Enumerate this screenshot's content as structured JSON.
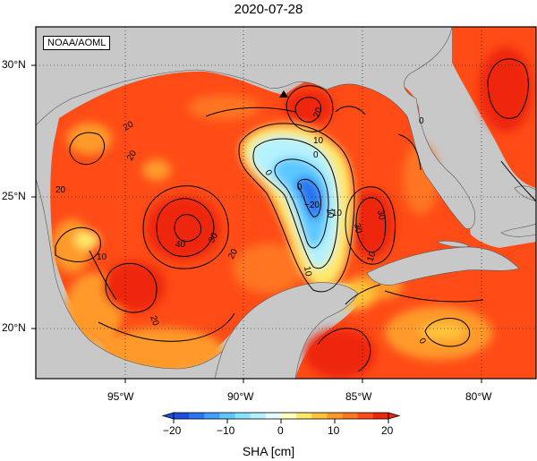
{
  "title": "2020-07-28",
  "credit": "NOAA/AOML",
  "lon_labels": [
    "95°W",
    "90°W",
    "85°W",
    "80°W"
  ],
  "lat_labels": [
    "30°N",
    "25°N",
    "20°N"
  ],
  "colorbar": {
    "label": "SHA [cm]",
    "ticks": [
      "−20",
      "−10",
      "0",
      "10",
      "20"
    ],
    "range": [
      -22,
      22
    ],
    "colors": [
      "#1f4ce0",
      "#2c73f0",
      "#3ea0ff",
      "#5cc8ff",
      "#86e4ff",
      "#b4f2ff",
      "#e6fbff",
      "#ffffbe",
      "#ffe86a",
      "#ffc23a",
      "#ff9a2a",
      "#ff7520",
      "#ff4c17",
      "#ee2610"
    ]
  },
  "contour_labels": [
    "20",
    "20",
    "20",
    "20",
    "10",
    "10",
    "10",
    "10",
    "0",
    "0",
    "0",
    "−10",
    "−20",
    "20",
    "30",
    "30",
    "40",
    "30",
    "10",
    "20",
    "0",
    "0"
  ],
  "marker": "buoy-triangle"
}
